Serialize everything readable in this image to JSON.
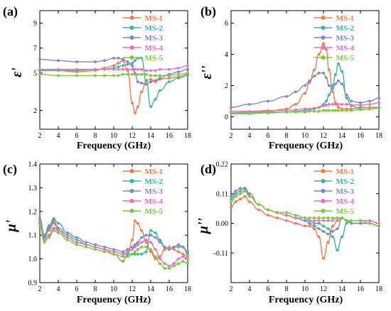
{
  "colors": {
    "MS-1": "#f27a4f",
    "MS-2": "#3fb49a",
    "MS-3": "#7e88c9",
    "MS-4": "#e56fc2",
    "MS-5": "#78cc3a"
  },
  "chart_data": [
    {
      "id": "a",
      "panel_label": "(a)",
      "type": "line",
      "xlabel": "Frequency (GHz)",
      "ylabel": "ε'",
      "xlim": [
        2,
        18
      ],
      "ylim": [
        0.5,
        10
      ],
      "xticks": [
        2,
        4,
        6,
        8,
        10,
        12,
        14,
        16,
        18
      ],
      "yticks": [
        2,
        5,
        7,
        9
      ],
      "legend": [
        "MS-1",
        "MS-2",
        "MS-3",
        "MS-4",
        "MS-5"
      ],
      "legend_position": "top-right",
      "x": [
        2,
        4,
        6,
        8,
        9,
        10,
        10.5,
        11,
        11.5,
        12,
        12.3,
        12.6,
        13,
        13.5,
        14,
        14.5,
        15,
        16,
        17,
        18
      ],
      "series": [
        {
          "name": "MS-1",
          "values": [
            5.2,
            5.2,
            5.1,
            5.2,
            5.4,
            5.6,
            5.8,
            6.0,
            5.2,
            2.6,
            1.8,
            2.3,
            3.5,
            4.4,
            4.5,
            4.3,
            4.5,
            4.6,
            4.7,
            4.9
          ]
        },
        {
          "name": "MS-2",
          "values": [
            5.2,
            5.2,
            5.2,
            5.3,
            5.3,
            5.4,
            5.5,
            5.6,
            5.7,
            5.8,
            6.0,
            6.2,
            6.2,
            4.4,
            2.3,
            2.9,
            3.6,
            4.3,
            4.6,
            4.8
          ]
        },
        {
          "name": "MS-3",
          "values": [
            6.1,
            6.0,
            5.9,
            5.9,
            6.0,
            6.2,
            6.2,
            6.1,
            5.9,
            5.6,
            5.0,
            4.3,
            4.2,
            4.1,
            4.3,
            4.4,
            4.6,
            4.9,
            5.1,
            5.3
          ]
        },
        {
          "name": "MS-4",
          "values": [
            5.3,
            5.3,
            5.3,
            5.3,
            5.3,
            5.3,
            5.3,
            5.3,
            5.3,
            5.3,
            5.3,
            5.3,
            5.3,
            5.2,
            5.2,
            5.2,
            5.3,
            5.3,
            5.4,
            5.6
          ]
        },
        {
          "name": "MS-5",
          "values": [
            4.9,
            4.8,
            4.8,
            4.8,
            4.8,
            4.8,
            4.8,
            4.9,
            4.9,
            4.9,
            4.9,
            4.9,
            4.9,
            4.9,
            4.8,
            4.8,
            4.8,
            4.8,
            4.9,
            5.0
          ]
        }
      ]
    },
    {
      "id": "b",
      "panel_label": "(b)",
      "type": "line",
      "xlabel": "Frequency (GHz)",
      "ylabel": "ε''",
      "xlim": [
        2,
        18
      ],
      "ylim": [
        -0.8,
        6.8
      ],
      "xticks": [
        2,
        4,
        6,
        8,
        10,
        12,
        14,
        16,
        18
      ],
      "yticks": [
        0,
        2,
        4,
        6
      ],
      "legend": [
        "MS-1",
        "MS-2",
        "MS-3",
        "MS-4",
        "MS-5"
      ],
      "legend_position": "top-right",
      "x": [
        2,
        4,
        6,
        8,
        9,
        10,
        10.5,
        11,
        11.5,
        12,
        12.3,
        12.6,
        13,
        13.3,
        13.6,
        14,
        14.5,
        15,
        16,
        17,
        18
      ],
      "series": [
        {
          "name": "MS-1",
          "values": [
            0.25,
            0.3,
            0.35,
            0.5,
            0.8,
            1.5,
            2.2,
            3.0,
            4.0,
            4.7,
            4.3,
            3.0,
            1.6,
            0.9,
            0.6,
            0.5,
            0.5,
            0.5,
            0.6,
            0.6,
            0.6
          ]
        },
        {
          "name": "MS-2",
          "values": [
            0.2,
            0.2,
            0.25,
            0.3,
            0.35,
            0.4,
            0.45,
            0.5,
            0.6,
            0.8,
            1.0,
            1.4,
            2.0,
            2.7,
            3.4,
            2.9,
            1.2,
            0.7,
            0.5,
            0.5,
            0.6
          ]
        },
        {
          "name": "MS-3",
          "values": [
            0.6,
            0.8,
            1.0,
            1.3,
            1.6,
            2.0,
            2.3,
            2.6,
            2.8,
            2.8,
            2.5,
            2.0,
            1.8,
            2.1,
            2.3,
            2.1,
            1.4,
            1.0,
            0.9,
            1.0,
            1.2
          ]
        },
        {
          "name": "MS-4",
          "values": [
            0.35,
            0.35,
            0.4,
            0.4,
            0.45,
            0.5,
            0.5,
            0.55,
            0.6,
            0.7,
            0.75,
            0.8,
            0.8,
            0.8,
            0.8,
            0.8,
            0.8,
            0.75,
            0.75,
            0.8,
            0.9
          ]
        },
        {
          "name": "MS-5",
          "values": [
            0.25,
            0.25,
            0.3,
            0.3,
            0.3,
            0.3,
            0.35,
            0.35,
            0.35,
            0.4,
            0.4,
            0.4,
            0.4,
            0.4,
            0.4,
            0.4,
            0.4,
            0.4,
            0.45,
            0.5,
            0.55
          ]
        }
      ]
    },
    {
      "id": "c",
      "panel_label": "(c)",
      "type": "line",
      "xlabel": "Frequency (GHz)",
      "ylabel": "μ'",
      "xlim": [
        2,
        18
      ],
      "ylim": [
        0.9,
        1.4
      ],
      "xticks": [
        2,
        4,
        6,
        8,
        10,
        12,
        14,
        16,
        18
      ],
      "yticks": [
        0.9,
        1.0,
        1.1,
        1.2,
        1.3,
        1.4
      ],
      "legend": [
        "MS-1",
        "MS-2",
        "MS-3",
        "MS-4",
        "MS-5"
      ],
      "legend_position": "top-right",
      "x": [
        2,
        2.5,
        3,
        3.5,
        4,
        5,
        6,
        7,
        8,
        9,
        10,
        11,
        11.5,
        12,
        12.3,
        12.6,
        13,
        13.5,
        14,
        14.5,
        15,
        15.5,
        16,
        16.5,
        17,
        17.5,
        18
      ],
      "series": [
        {
          "name": "MS-1",
          "values": [
            1.15,
            1.09,
            1.12,
            1.15,
            1.12,
            1.09,
            1.07,
            1.06,
            1.05,
            1.04,
            1.02,
            0.99,
            1.02,
            1.08,
            1.16,
            1.15,
            1.12,
            1.07,
            1.03,
            1.0,
            1.01,
            1.04,
            1.05,
            1.04,
            1.03,
            1.02,
            1.01
          ]
        },
        {
          "name": "MS-2",
          "values": [
            1.16,
            1.09,
            1.13,
            1.16,
            1.13,
            1.1,
            1.08,
            1.06,
            1.05,
            1.04,
            1.03,
            1.02,
            1.02,
            1.02,
            1.02,
            1.02,
            1.02,
            1.03,
            1.12,
            1.11,
            1.08,
            1.05,
            1.04,
            1.05,
            1.05,
            1.05,
            1.02
          ]
        },
        {
          "name": "MS-3",
          "values": [
            1.17,
            1.1,
            1.14,
            1.17,
            1.15,
            1.11,
            1.09,
            1.07,
            1.06,
            1.05,
            1.04,
            1.03,
            1.04,
            1.05,
            1.06,
            1.07,
            1.09,
            1.1,
            1.1,
            1.09,
            1.07,
            1.05,
            1.04,
            1.05,
            1.06,
            1.05,
            1.03
          ]
        },
        {
          "name": "MS-4",
          "values": [
            1.15,
            1.08,
            1.1,
            1.13,
            1.12,
            1.09,
            1.07,
            1.06,
            1.05,
            1.04,
            1.03,
            1.02,
            1.03,
            1.04,
            1.05,
            1.06,
            1.07,
            1.08,
            1.07,
            1.04,
            1.0,
            0.98,
            0.97,
            0.98,
            1.0,
            1.01,
            1.0
          ]
        },
        {
          "name": "MS-5",
          "values": [
            1.14,
            1.07,
            1.09,
            1.12,
            1.11,
            1.08,
            1.06,
            1.05,
            1.04,
            1.03,
            1.02,
            1.01,
            1.01,
            1.02,
            1.03,
            1.04,
            1.05,
            1.05,
            1.04,
            1.01,
            0.98,
            0.96,
            0.96,
            0.97,
            0.98,
            0.99,
            0.98
          ]
        }
      ]
    },
    {
      "id": "d",
      "panel_label": "(d)",
      "type": "line",
      "xlabel": "Frequency (GHz)",
      "ylabel": "μ''",
      "xlim": [
        2,
        18
      ],
      "ylim": [
        -0.22,
        0.22
      ],
      "xticks": [
        2,
        4,
        6,
        8,
        10,
        12,
        14,
        16,
        18
      ],
      "yticks": [
        -0.11,
        0.0,
        0.11,
        0.22
      ],
      "ytick_labels": [
        "-0.11",
        "0.00",
        "0.11",
        "0.22"
      ],
      "legend": [
        "MS-1",
        "MS-2",
        "MS-3",
        "MS-4",
        "MS-5"
      ],
      "legend_position": "top-right",
      "x": [
        2,
        2.5,
        3,
        3.5,
        4,
        5,
        6,
        7,
        8,
        9,
        10,
        10.5,
        11,
        11.5,
        12,
        12.5,
        13,
        13.5,
        14,
        14.5,
        15,
        16,
        17,
        18
      ],
      "series": [
        {
          "name": "MS-1",
          "values": [
            0.06,
            0.08,
            0.09,
            0.1,
            0.08,
            0.05,
            0.03,
            0.02,
            0.01,
            0.0,
            -0.01,
            -0.01,
            -0.02,
            -0.05,
            -0.13,
            -0.07,
            -0.01,
            0.01,
            0.02,
            0.01,
            0.0,
            0.0,
            0.0,
            -0.01
          ]
        },
        {
          "name": "MS-2",
          "values": [
            0.09,
            0.11,
            0.12,
            0.13,
            0.1,
            0.07,
            0.05,
            0.04,
            0.03,
            0.02,
            0.01,
            0.01,
            0.0,
            0.0,
            -0.01,
            -0.02,
            -0.05,
            -0.1,
            -0.05,
            0.0,
            0.01,
            0.01,
            0.01,
            0.0
          ]
        },
        {
          "name": "MS-3",
          "values": [
            0.1,
            0.12,
            0.13,
            0.13,
            0.11,
            0.07,
            0.05,
            0.04,
            0.03,
            0.02,
            0.01,
            0.0,
            -0.01,
            -0.02,
            -0.03,
            -0.04,
            -0.03,
            -0.02,
            0.02,
            0.01,
            0.0,
            0.0,
            0.0,
            -0.01
          ]
        },
        {
          "name": "MS-4",
          "values": [
            0.08,
            0.1,
            0.11,
            0.12,
            0.1,
            0.07,
            0.05,
            0.04,
            0.03,
            0.02,
            0.02,
            0.01,
            0.01,
            0.01,
            0.01,
            0.01,
            0.01,
            0.02,
            0.02,
            0.01,
            0.01,
            0.01,
            0.01,
            0.0
          ]
        },
        {
          "name": "MS-5",
          "values": [
            0.08,
            0.1,
            0.11,
            0.12,
            0.1,
            0.07,
            0.05,
            0.04,
            0.04,
            0.03,
            0.02,
            0.02,
            0.02,
            0.02,
            0.02,
            0.02,
            0.02,
            0.02,
            0.02,
            0.01,
            0.01,
            0.01,
            0.0,
            -0.01
          ]
        }
      ]
    }
  ]
}
